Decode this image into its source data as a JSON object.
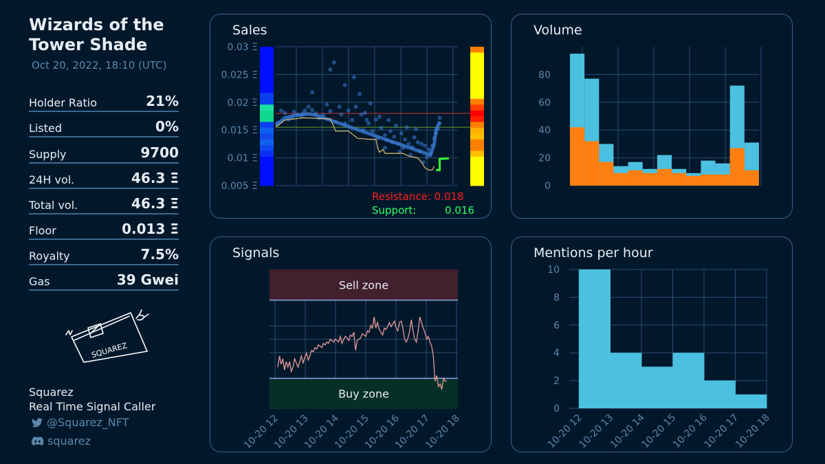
{
  "collection": {
    "title_line1": "Wizards of the",
    "title_line2": "Tower Shade",
    "timestamp": "Oct 20, 2022, 18:10 (UTC)"
  },
  "stats": [
    {
      "label": "Holder Ratio",
      "value": "21%"
    },
    {
      "label": "Listed",
      "value": "0%"
    },
    {
      "label": "Supply",
      "value": "9700"
    },
    {
      "label": "24H vol.",
      "value": "46.3 Ξ"
    },
    {
      "label": "Total vol.",
      "value": "46.3 Ξ"
    },
    {
      "label": "Floor",
      "value": "0.013 Ξ"
    },
    {
      "label": "Royalty",
      "value": "7.5%"
    },
    {
      "label": "Gas",
      "value": "39 Gwei"
    }
  ],
  "author": {
    "signature_text": "SQUAREZ",
    "name": "Squarez",
    "role": "Real Time Signal Caller",
    "twitter": "@Squarez_NFT",
    "discord": "squarez"
  },
  "colors": {
    "background": "#01182b",
    "panel_border": "#3a6288",
    "axis_text": "#5d87a8",
    "resistance": "#ff2020",
    "support": "#33ff66",
    "volume_total": "#4cc0e0",
    "volume_part": "#ff8010",
    "mentions": "#4cc0e0",
    "sell_zone": "#43202e",
    "buy_zone": "#063027",
    "signal_line": "#e89a9a"
  },
  "panels": {
    "sales": {
      "title": "Sales"
    },
    "volume": {
      "title": "Volume"
    },
    "signals": {
      "title": "Signals"
    },
    "mentions": {
      "title": "Mentions per hour"
    }
  },
  "chart_data": [
    {
      "type": "scatter",
      "title": "Sales",
      "ylim": [
        0.005,
        0.03
      ],
      "ytick_labels": [
        "0.005 Ξ",
        "0.01 Ξ",
        "0.015 Ξ",
        "0.02 Ξ",
        "0.025 Ξ",
        "0.03 Ξ"
      ],
      "yticks": [
        0.005,
        0.01,
        0.015,
        0.02,
        0.025,
        0.03
      ],
      "resistance": 0.018,
      "support": 0.016,
      "resistance_label": "Resistance: 0.018",
      "support_label": "Support:",
      "support_value": "0.016",
      "grid": true,
      "floor_line": [
        [
          0,
          0.0155
        ],
        [
          0.05,
          0.0168
        ],
        [
          0.15,
          0.0172
        ],
        [
          0.3,
          0.017
        ],
        [
          0.33,
          0.0148
        ],
        [
          0.4,
          0.0148
        ],
        [
          0.45,
          0.0135
        ],
        [
          0.53,
          0.0133
        ],
        [
          0.55,
          0.0133
        ],
        [
          0.56,
          0.0118
        ],
        [
          0.57,
          0.011
        ],
        [
          0.59,
          0.0115
        ],
        [
          0.6,
          0.0108
        ],
        [
          0.7,
          0.0108
        ],
        [
          0.73,
          0.0103
        ],
        [
          0.78,
          0.01
        ],
        [
          0.8,
          0.0092
        ],
        [
          0.82,
          0.0082
        ],
        [
          0.84,
          0.0078
        ],
        [
          0.86,
          0.0078
        ],
        [
          0.87,
          0.0085
        ]
      ],
      "green_line": [
        [
          0.88,
          0.0078
        ],
        [
          0.9,
          0.0078
        ],
        [
          0.9,
          0.0098
        ],
        [
          0.95,
          0.0099
        ]
      ],
      "blue_line": [
        [
          0.0,
          0.0158
        ],
        [
          0.05,
          0.0172
        ],
        [
          0.1,
          0.0176
        ],
        [
          0.15,
          0.0178
        ],
        [
          0.18,
          0.0179
        ],
        [
          0.22,
          0.0177
        ],
        [
          0.85,
          0.0105
        ],
        [
          0.87,
          0.0125
        ],
        [
          0.88,
          0.015
        ],
        [
          0.9,
          0.0165
        ]
      ],
      "scatter_points": [
        [
          0.01,
          0.0163
        ],
        [
          0.03,
          0.0185
        ],
        [
          0.05,
          0.0181
        ],
        [
          0.07,
          0.0169
        ],
        [
          0.09,
          0.0172
        ],
        [
          0.1,
          0.0183
        ],
        [
          0.12,
          0.0178
        ],
        [
          0.14,
          0.0176
        ],
        [
          0.15,
          0.018
        ],
        [
          0.16,
          0.0185
        ],
        [
          0.18,
          0.0192
        ],
        [
          0.2,
          0.0186
        ],
        [
          0.2,
          0.0218
        ],
        [
          0.22,
          0.018
        ],
        [
          0.24,
          0.0171
        ],
        [
          0.26,
          0.0177
        ],
        [
          0.28,
          0.0196
        ],
        [
          0.3,
          0.0184
        ],
        [
          0.3,
          0.0259
        ],
        [
          0.32,
          0.0272
        ],
        [
          0.33,
          0.0165
        ],
        [
          0.35,
          0.0192
        ],
        [
          0.36,
          0.0178
        ],
        [
          0.38,
          0.0231
        ],
        [
          0.38,
          0.0162
        ],
        [
          0.4,
          0.0185
        ],
        [
          0.42,
          0.0168
        ],
        [
          0.43,
          0.0245
        ],
        [
          0.44,
          0.0192
        ],
        [
          0.46,
          0.0215
        ],
        [
          0.47,
          0.0178
        ],
        [
          0.48,
          0.015
        ],
        [
          0.49,
          0.0181
        ],
        [
          0.5,
          0.0168
        ],
        [
          0.51,
          0.0162
        ],
        [
          0.52,
          0.0198
        ],
        [
          0.53,
          0.0148
        ],
        [
          0.55,
          0.0169
        ],
        [
          0.56,
          0.0135
        ],
        [
          0.57,
          0.0174
        ],
        [
          0.58,
          0.0154
        ],
        [
          0.6,
          0.0118
        ],
        [
          0.6,
          0.0141
        ],
        [
          0.61,
          0.0132
        ],
        [
          0.62,
          0.0168
        ],
        [
          0.63,
          0.0148
        ],
        [
          0.64,
          0.0128
        ],
        [
          0.65,
          0.0138
        ],
        [
          0.66,
          0.0158
        ],
        [
          0.67,
          0.0126
        ],
        [
          0.68,
          0.0111
        ],
        [
          0.69,
          0.0144
        ],
        [
          0.7,
          0.0118
        ],
        [
          0.71,
          0.0133
        ],
        [
          0.72,
          0.0155
        ],
        [
          0.73,
          0.0125
        ],
        [
          0.74,
          0.0105
        ],
        [
          0.75,
          0.0119
        ],
        [
          0.76,
          0.0137
        ],
        [
          0.77,
          0.0152
        ],
        [
          0.78,
          0.0128
        ],
        [
          0.79,
          0.0112
        ],
        [
          0.8,
          0.0125
        ],
        [
          0.81,
          0.0092
        ],
        [
          0.82,
          0.0122
        ],
        [
          0.83,
          0.0101
        ],
        [
          0.84,
          0.0115
        ],
        [
          0.85,
          0.0108
        ],
        [
          0.86,
          0.0122
        ],
        [
          0.87,
          0.0135
        ],
        [
          0.88,
          0.0145
        ],
        [
          0.89,
          0.0152
        ],
        [
          0.9,
          0.0162
        ],
        [
          0.9,
          0.0172
        ]
      ],
      "left_heat_colors": [
        "#0010ff",
        "#0010ff",
        "#0010ff",
        "#0010ff",
        "#0010ff",
        "#0010ff",
        "#0010ff",
        "#0010ff",
        "#0a40f0",
        "#0a40f0",
        "#18e0a0",
        "#10d890",
        "#10d890",
        "#0a40f0",
        "#1060f0",
        "#1048f0",
        "#1060f0",
        "#1048f0",
        "#0a30f8",
        "#0010ff",
        "#0010ff",
        "#0010ff",
        "#0010ff",
        "#0010ff"
      ],
      "right_heat_colors": [
        "#ff8000",
        "#ffff00",
        "#ffff00",
        "#ffff00",
        "#ffff00",
        "#ffff00",
        "#ffff00",
        "#ffff00",
        "#ffff00",
        "#ff8000",
        "#ff4000",
        "#ff0000",
        "#ff2000",
        "#ff8000",
        "#ffb000",
        "#ffc000",
        "#ff8000",
        "#ff8000",
        "#ffc000",
        "#ffff00",
        "#ffff00",
        "#ffff00",
        "#ffff00",
        "#ffff00"
      ]
    },
    {
      "type": "bar",
      "title": "Volume",
      "ylim": [
        0,
        100
      ],
      "yticks": [
        0,
        20,
        40,
        60,
        80
      ],
      "grid": true,
      "series": [
        {
          "values": [
            95,
            77,
            30,
            14,
            17,
            12,
            22,
            12,
            9,
            18,
            16,
            72,
            31
          ]
        },
        {
          "values": [
            42,
            32,
            17,
            9,
            11,
            9,
            12,
            9,
            7,
            8,
            8,
            27,
            11
          ]
        }
      ]
    },
    {
      "type": "line",
      "title": "Signals",
      "sell_zone_label": "Sell zone",
      "buy_zone_label": "Buy zone",
      "x_tick_labels": [
        "10-20 12",
        "10-20 13",
        "10-20 14",
        "10-20 15",
        "10-20 16",
        "10-20 17",
        "10-20 18"
      ],
      "sell_threshold": 0.78,
      "buy_threshold": 0.22,
      "values": [
        0.3,
        0.38,
        0.32,
        0.36,
        0.28,
        0.34,
        0.3,
        0.34,
        0.27,
        0.3,
        0.36,
        0.33,
        0.3,
        0.34,
        0.38,
        0.33,
        0.37,
        0.4,
        0.35,
        0.38,
        0.42,
        0.41,
        0.44,
        0.43,
        0.46,
        0.45,
        0.44,
        0.47,
        0.46,
        0.48,
        0.47,
        0.5,
        0.49,
        0.48,
        0.5,
        0.49,
        0.48,
        0.52,
        0.47,
        0.5,
        0.52,
        0.51,
        0.49,
        0.53,
        0.52,
        0.55,
        0.42,
        0.49,
        0.5,
        0.51,
        0.54,
        0.53,
        0.52,
        0.56,
        0.55,
        0.6,
        0.58,
        0.66,
        0.58,
        0.62,
        0.57,
        0.55,
        0.53,
        0.58,
        0.57,
        0.59,
        0.62,
        0.59,
        0.61,
        0.63,
        0.58,
        0.56,
        0.62,
        0.63,
        0.58,
        0.5,
        0.48,
        0.51,
        0.56,
        0.64,
        0.56,
        0.5,
        0.48,
        0.56,
        0.66,
        0.62,
        0.58,
        0.55,
        0.5,
        0.52,
        0.48,
        0.45,
        0.38,
        0.2,
        0.24,
        0.16,
        0.18,
        0.14,
        0.22,
        0.2,
        0.2
      ]
    },
    {
      "type": "bar",
      "title": "Mentions per hour",
      "ylim": [
        0,
        10
      ],
      "yticks": [
        0,
        2,
        4,
        6,
        8,
        10
      ],
      "x_tick_labels": [
        "10-20 12",
        "10-20 13",
        "10-20 14",
        "10-20 15",
        "10-20 16",
        "10-20 17",
        "10-20 18"
      ],
      "grid": true,
      "values": [
        10,
        10,
        4,
        4,
        3,
        3,
        4,
        4,
        2,
        2,
        1,
        1
      ]
    }
  ]
}
